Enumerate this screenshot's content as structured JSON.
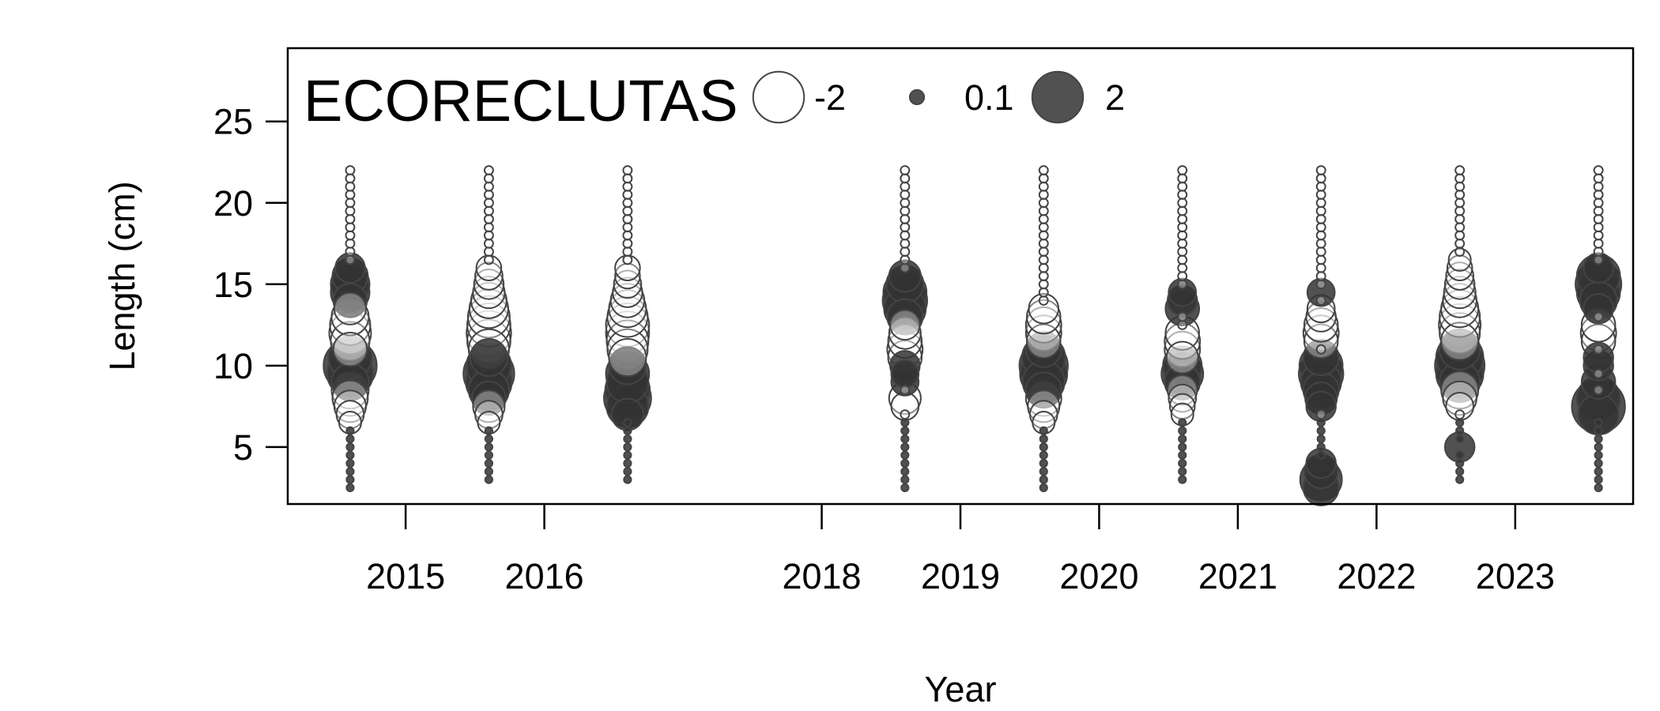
{
  "chart_data": {
    "type": "scatter",
    "subtype": "bubble",
    "title": "ECORECLUTAS",
    "xlabel": "Year",
    "ylabel": "Length (cm)",
    "x_ticks": [
      2015,
      2016,
      2018,
      2019,
      2020,
      2021,
      2022,
      2023
    ],
    "y_ticks": [
      5,
      10,
      15,
      20,
      25
    ],
    "xlim": [
      2014.15,
      2023.85
    ],
    "ylim": [
      1.5,
      29.5
    ],
    "grid": false,
    "legend": {
      "placement": "top-left",
      "entries": [
        {
          "label": "-2",
          "value": -2
        },
        {
          "label": "0.1",
          "value": 0.1
        },
        {
          "label": "2",
          "value": 2
        }
      ]
    },
    "colors": {
      "positive": "#333333",
      "negative": "#ffffff",
      "stroke": "#444444"
    },
    "length_range": [
      2.5,
      22
    ],
    "length_step": 0.5,
    "columns": [
      {
        "x": 2014.6,
        "min_length": 2.5,
        "anomalies": [
          {
            "y": 6.5,
            "v": -0.3
          },
          {
            "y": 7.0,
            "v": -0.5
          },
          {
            "y": 7.5,
            "v": -0.7
          },
          {
            "y": 8.0,
            "v": -0.9
          },
          {
            "y": 8.5,
            "v": -1.0
          },
          {
            "y": 9.0,
            "v": 1.0
          },
          {
            "y": 9.5,
            "v": 1.6
          },
          {
            "y": 10.0,
            "v": 2.2
          },
          {
            "y": 10.5,
            "v": 1.4
          },
          {
            "y": 11.0,
            "v": -0.8
          },
          {
            "y": 11.5,
            "v": -1.1
          },
          {
            "y": 12.0,
            "v": -1.3
          },
          {
            "y": 12.5,
            "v": -1.2
          },
          {
            "y": 13.0,
            "v": -1.0
          },
          {
            "y": 13.5,
            "v": -0.7
          },
          {
            "y": 14.0,
            "v": 0.8
          },
          {
            "y": 14.5,
            "v": 1.1
          },
          {
            "y": 15.0,
            "v": 1.1
          },
          {
            "y": 15.5,
            "v": 0.9
          },
          {
            "y": 16.0,
            "v": 0.6
          }
        ]
      },
      {
        "x": 2015.6,
        "min_length": 3.0,
        "anomalies": [
          {
            "y": 6.5,
            "v": -0.3
          },
          {
            "y": 7.0,
            "v": -0.5
          },
          {
            "y": 7.5,
            "v": -0.7
          },
          {
            "y": 8.0,
            "v": 0.8
          },
          {
            "y": 8.5,
            "v": 1.2
          },
          {
            "y": 9.0,
            "v": 1.6
          },
          {
            "y": 9.5,
            "v": 2.0
          },
          {
            "y": 10.0,
            "v": 1.5
          },
          {
            "y": 10.5,
            "v": 1.0
          },
          {
            "y": 11.0,
            "v": -1.2
          },
          {
            "y": 11.5,
            "v": -1.4
          },
          {
            "y": 12.0,
            "v": -1.5
          },
          {
            "y": 12.5,
            "v": -1.4
          },
          {
            "y": 13.0,
            "v": -1.3
          },
          {
            "y": 13.5,
            "v": -1.1
          },
          {
            "y": 14.0,
            "v": -0.9
          },
          {
            "y": 14.5,
            "v": -0.7
          },
          {
            "y": 15.0,
            "v": -0.6
          },
          {
            "y": 15.5,
            "v": -0.5
          },
          {
            "y": 16.0,
            "v": -0.4
          }
        ]
      },
      {
        "x": 2016.6,
        "min_length": 3.0,
        "anomalies": [
          {
            "y": 7.0,
            "v": 0.7
          },
          {
            "y": 7.5,
            "v": 1.3
          },
          {
            "y": 8.0,
            "v": 1.7
          },
          {
            "y": 8.5,
            "v": 1.5
          },
          {
            "y": 9.0,
            "v": 1.3
          },
          {
            "y": 9.5,
            "v": 1.4
          },
          {
            "y": 10.0,
            "v": 1.0
          },
          {
            "y": 10.5,
            "v": -1.0
          },
          {
            "y": 11.0,
            "v": -1.2
          },
          {
            "y": 11.5,
            "v": -1.3
          },
          {
            "y": 12.0,
            "v": -1.4
          },
          {
            "y": 12.5,
            "v": -1.4
          },
          {
            "y": 13.0,
            "v": -1.2
          },
          {
            "y": 13.5,
            "v": -1.0
          },
          {
            "y": 14.0,
            "v": -0.8
          },
          {
            "y": 14.5,
            "v": -0.6
          },
          {
            "y": 15.0,
            "v": -0.5
          },
          {
            "y": 15.5,
            "v": -0.4
          },
          {
            "y": 16.0,
            "v": -0.4
          }
        ]
      },
      {
        "x": 2018.6,
        "min_length": 2.5,
        "anomalies": [
          {
            "y": 7.5,
            "v": -0.5
          },
          {
            "y": 8.0,
            "v": -0.7
          },
          {
            "y": 9.0,
            "v": 0.5
          },
          {
            "y": 9.5,
            "v": 0.5
          },
          {
            "y": 10.0,
            "v": 0.6
          },
          {
            "y": 10.5,
            "v": -0.8
          },
          {
            "y": 11.0,
            "v": -0.9
          },
          {
            "y": 11.5,
            "v": -0.8
          },
          {
            "y": 12.0,
            "v": -0.7
          },
          {
            "y": 12.5,
            "v": -0.6
          },
          {
            "y": 13.0,
            "v": 0.9
          },
          {
            "y": 13.5,
            "v": 1.3
          },
          {
            "y": 14.0,
            "v": 1.5
          },
          {
            "y": 14.5,
            "v": 1.4
          },
          {
            "y": 15.0,
            "v": 1.0
          },
          {
            "y": 15.5,
            "v": 0.7
          }
        ]
      },
      {
        "x": 2019.6,
        "min_length": 2.5,
        "anomalies": [
          {
            "y": 6.5,
            "v": -0.3
          },
          {
            "y": 7.0,
            "v": -0.5
          },
          {
            "y": 7.5,
            "v": -0.7
          },
          {
            "y": 8.0,
            "v": -0.9
          },
          {
            "y": 8.5,
            "v": 0.9
          },
          {
            "y": 9.0,
            "v": 1.3
          },
          {
            "y": 9.5,
            "v": 1.7
          },
          {
            "y": 10.0,
            "v": 1.8
          },
          {
            "y": 10.5,
            "v": 1.4
          },
          {
            "y": 11.0,
            "v": 0.9
          },
          {
            "y": 11.5,
            "v": -0.8
          },
          {
            "y": 12.0,
            "v": -0.9
          },
          {
            "y": 12.5,
            "v": -0.9
          },
          {
            "y": 13.0,
            "v": -0.8
          },
          {
            "y": 13.5,
            "v": -0.6
          }
        ]
      },
      {
        "x": 2020.6,
        "min_length": 3.0,
        "anomalies": [
          {
            "y": 7.0,
            "v": -0.3
          },
          {
            "y": 7.5,
            "v": -0.4
          },
          {
            "y": 8.0,
            "v": -0.5
          },
          {
            "y": 8.5,
            "v": -0.6
          },
          {
            "y": 9.0,
            "v": 0.9
          },
          {
            "y": 9.5,
            "v": 1.3
          },
          {
            "y": 10.0,
            "v": 1.1
          },
          {
            "y": 10.5,
            "v": -0.7
          },
          {
            "y": 11.0,
            "v": -0.9
          },
          {
            "y": 11.5,
            "v": -0.9
          },
          {
            "y": 12.0,
            "v": -0.8
          },
          {
            "y": 13.5,
            "v": 0.8
          },
          {
            "y": 14.0,
            "v": 0.6
          },
          {
            "y": 14.5,
            "v": 0.5
          }
        ]
      },
      {
        "x": 2021.6,
        "min_length": 2.5,
        "anomalies": [
          {
            "y": 2.5,
            "v": 0.9
          },
          {
            "y": 3.0,
            "v": 1.3
          },
          {
            "y": 3.5,
            "v": 0.8
          },
          {
            "y": 4.0,
            "v": 0.6
          },
          {
            "y": 7.5,
            "v": 0.6
          },
          {
            "y": 8.0,
            "v": 0.7
          },
          {
            "y": 8.5,
            "v": 0.9
          },
          {
            "y": 9.0,
            "v": 1.2
          },
          {
            "y": 9.5,
            "v": 1.5
          },
          {
            "y": 10.0,
            "v": 1.4
          },
          {
            "y": 10.5,
            "v": 0.9
          },
          {
            "y": 11.5,
            "v": -0.8
          },
          {
            "y": 12.0,
            "v": -0.9
          },
          {
            "y": 12.5,
            "v": -0.8
          },
          {
            "y": 13.0,
            "v": -0.6
          },
          {
            "y": 13.5,
            "v": -0.5
          },
          {
            "y": 14.5,
            "v": 0.5
          }
        ]
      },
      {
        "x": 2022.6,
        "min_length": 3.0,
        "anomalies": [
          {
            "y": 5.0,
            "v": 0.6
          },
          {
            "y": 7.5,
            "v": -0.5
          },
          {
            "y": 8.0,
            "v": -0.8
          },
          {
            "y": 8.5,
            "v": -1.0
          },
          {
            "y": 9.0,
            "v": 1.2
          },
          {
            "y": 9.5,
            "v": 1.7
          },
          {
            "y": 10.0,
            "v": 1.9
          },
          {
            "y": 10.5,
            "v": 1.7
          },
          {
            "y": 11.0,
            "v": 1.2
          },
          {
            "y": 11.5,
            "v": -1.0
          },
          {
            "y": 12.0,
            "v": -1.2
          },
          {
            "y": 12.5,
            "v": -1.3
          },
          {
            "y": 13.0,
            "v": -1.2
          },
          {
            "y": 13.5,
            "v": -1.0
          },
          {
            "y": 14.0,
            "v": -0.8
          },
          {
            "y": 14.5,
            "v": -0.7
          },
          {
            "y": 15.0,
            "v": -0.6
          },
          {
            "y": 15.5,
            "v": -0.5
          },
          {
            "y": 16.0,
            "v": -0.4
          },
          {
            "y": 16.5,
            "v": -0.3
          }
        ]
      },
      {
        "x": 2023.6,
        "min_length": 2.5,
        "anomalies": [
          {
            "y": 7.0,
            "v": 1.2
          },
          {
            "y": 7.5,
            "v": 2.2
          },
          {
            "y": 8.0,
            "v": 1.4
          },
          {
            "y": 9.0,
            "v": 0.8
          },
          {
            "y": 10.0,
            "v": 0.6
          },
          {
            "y": 10.5,
            "v": 0.6
          },
          {
            "y": 11.5,
            "v": -0.8
          },
          {
            "y": 12.0,
            "v": -0.9
          },
          {
            "y": 12.5,
            "v": -0.8
          },
          {
            "y": 13.5,
            "v": 0.6
          },
          {
            "y": 14.0,
            "v": 1.0
          },
          {
            "y": 14.5,
            "v": 1.4
          },
          {
            "y": 15.0,
            "v": 1.6
          },
          {
            "y": 15.5,
            "v": 1.4
          },
          {
            "y": 16.0,
            "v": 0.6
          }
        ]
      }
    ]
  }
}
